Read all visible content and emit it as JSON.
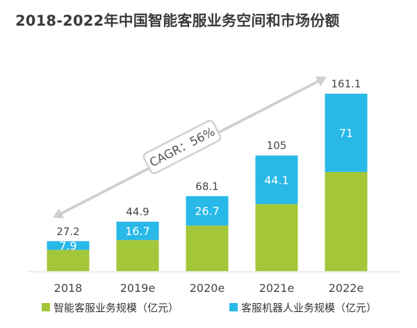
{
  "chart_data": {
    "type": "bar",
    "stacked": true,
    "title": "2018-2022年中国智能客服业务空间和市场份额",
    "categories": [
      "2018",
      "2019e",
      "2020e",
      "2021e",
      "2022e"
    ],
    "series": [
      {
        "name": "智能客服业务规模（亿元）",
        "color": "#a4c639",
        "values": [
          19.3,
          28.2,
          41.4,
          60.9,
          90.1
        ]
      },
      {
        "name": "客服机器人业务规模（亿元）",
        "color": "#29b9e8",
        "values": [
          7.9,
          16.7,
          26.7,
          44.1,
          71
        ],
        "labels": [
          "7.9",
          "16.7",
          "26.7",
          "44.1",
          "71"
        ]
      }
    ],
    "totals": [
      "27.2",
      "44.9",
      "68.1",
      "105",
      "161.1"
    ],
    "totals_values": [
      27.2,
      44.9,
      68.1,
      105,
      161.1
    ],
    "annotation": "CAGR：56%",
    "ylim": [
      0,
      170
    ],
    "legend_position": "bottom"
  }
}
